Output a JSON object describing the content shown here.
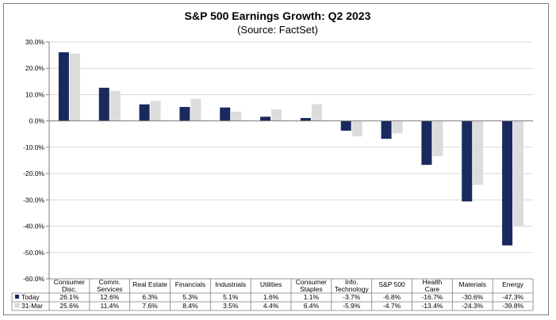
{
  "chart_data": {
    "type": "bar",
    "title": "S&P 500 Earnings Growth: Q2 2023",
    "subtitle": "(Source: FactSet)",
    "categories": [
      [
        "Consumer",
        "Disc."
      ],
      [
        "Comm.",
        "Services"
      ],
      [
        "Real Estate"
      ],
      [
        "Financials"
      ],
      [
        "Industrials"
      ],
      [
        "Utilities"
      ],
      [
        "Consumer",
        "Staples"
      ],
      [
        "Info.",
        "Technology"
      ],
      [
        "S&P 500"
      ],
      [
        "Health",
        "Care"
      ],
      [
        "Materials"
      ],
      [
        "Energy"
      ]
    ],
    "series": [
      {
        "name": "Today",
        "color": "#1a2a5e",
        "values": [
          26.1,
          12.6,
          6.3,
          5.3,
          5.1,
          1.6,
          1.1,
          -3.7,
          -6.8,
          -16.7,
          -30.6,
          -47.3
        ],
        "labels": [
          "26.1%",
          "12.6%",
          "6.3%",
          "5.3%",
          "5.1%",
          "1.6%",
          "1.1%",
          "-3.7%",
          "-6.8%",
          "-16.7%",
          "-30.6%",
          "-47.3%"
        ]
      },
      {
        "name": "31-Mar",
        "color": "#dcdcdc",
        "values": [
          25.6,
          11.4,
          7.6,
          8.4,
          3.5,
          4.4,
          6.4,
          -5.9,
          -4.7,
          -13.4,
          -24.3,
          -39.8
        ],
        "labels": [
          "25.6%",
          "11.4%",
          "7.6%",
          "8.4%",
          "3.5%",
          "4.4%",
          "6.4%",
          "-5.9%",
          "-4.7%",
          "-13.4%",
          "-24.3%",
          "-39.8%"
        ]
      }
    ],
    "ylim": [
      -60,
      30
    ],
    "yticks": [
      30,
      20,
      10,
      0,
      -10,
      -20,
      -30,
      -40,
      -50,
      -60
    ],
    "ytick_labels": [
      "30.0%",
      "20.0%",
      "10.0%",
      "0.0%",
      "-10.0%",
      "-20.0%",
      "-30.0%",
      "-40.0%",
      "-50.0%",
      "-60.0%"
    ],
    "legend_placement": "data-table",
    "grid": true
  }
}
